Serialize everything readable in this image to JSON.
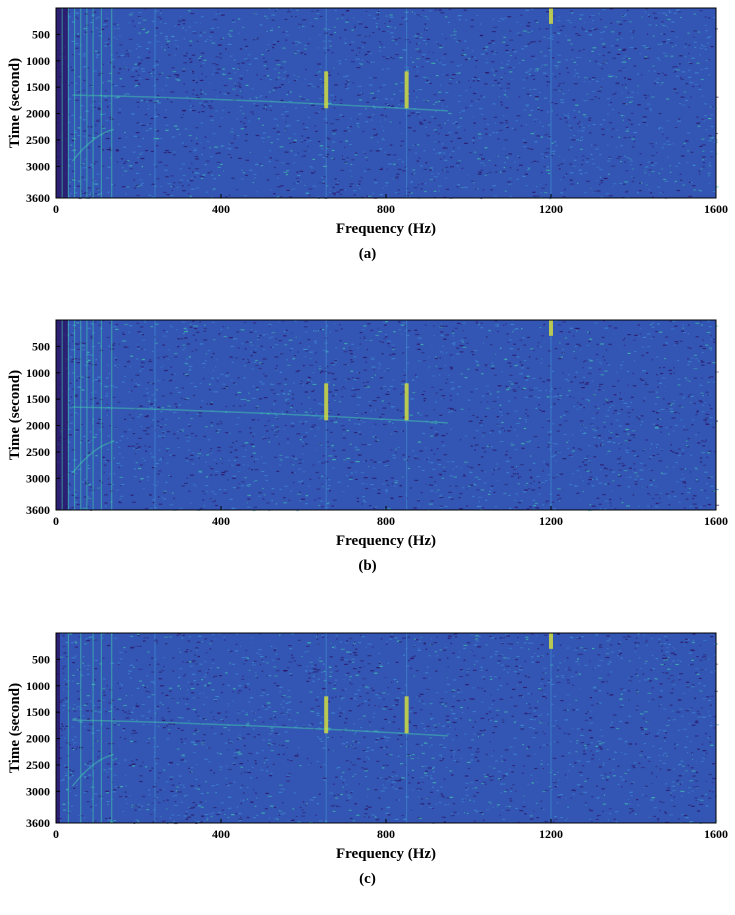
{
  "chart_data": [
    {
      "type": "heatmap",
      "panel": "(a)",
      "caption": "(a)",
      "xlabel": "Frequency (Hz)",
      "ylabel": "Time (second)",
      "xlim": [
        0,
        1600
      ],
      "ylim": [
        0,
        3600
      ],
      "y_inverted": true,
      "xticks": [
        0,
        400,
        800,
        1200,
        1600
      ],
      "yticks": [
        500,
        1000,
        1500,
        2000,
        2500,
        3000,
        3600
      ],
      "colormap": [
        "#2a0f5e",
        "#3355b3",
        "#3f8fd2",
        "#42c9b0",
        "#d8e23a"
      ],
      "tonal_lines_hz": [
        15,
        30,
        45,
        60,
        75,
        90,
        110,
        135,
        240,
        655,
        850,
        1200
      ],
      "hotspots": [
        {
          "freq_hz": 655,
          "time_s": [
            1200,
            1900
          ]
        },
        {
          "freq_hz": 850,
          "time_s": [
            1200,
            1900
          ]
        },
        {
          "freq_hz": 1200,
          "time_s": [
            0,
            300
          ]
        }
      ]
    },
    {
      "type": "heatmap",
      "panel": "(b)",
      "caption": "(b)",
      "xlabel": "Frequency (Hz)",
      "ylabel": "Time (second)",
      "xlim": [
        0,
        1600
      ],
      "ylim": [
        0,
        3600
      ],
      "y_inverted": true,
      "xticks": [
        0,
        400,
        800,
        1200,
        1600
      ],
      "yticks": [
        500,
        1000,
        1500,
        2000,
        2500,
        3000,
        3600
      ],
      "colormap": [
        "#2a0f5e",
        "#3355b3",
        "#3f8fd2",
        "#42c9b0",
        "#d8e23a"
      ],
      "tonal_lines_hz": [
        15,
        30,
        45,
        60,
        75,
        90,
        110,
        135,
        240,
        655,
        850,
        1200
      ],
      "hotspots": [
        {
          "freq_hz": 655,
          "time_s": [
            1200,
            1900
          ]
        },
        {
          "freq_hz": 850,
          "time_s": [
            1200,
            1900
          ]
        },
        {
          "freq_hz": 1200,
          "time_s": [
            0,
            300
          ]
        }
      ]
    },
    {
      "type": "heatmap",
      "panel": "(c)",
      "caption": "(c)",
      "xlabel": "Frequency (Hz)",
      "ylabel": "Time (second)",
      "xlim": [
        0,
        1600
      ],
      "ylim": [
        0,
        3600
      ],
      "y_inverted": true,
      "xticks": [
        0,
        400,
        800,
        1200,
        1600
      ],
      "yticks": [
        500,
        1000,
        1500,
        2000,
        2500,
        3000,
        3600
      ],
      "colormap": [
        "#2a0f5e",
        "#3355b3",
        "#3f8fd2",
        "#42c9b0",
        "#d8e23a"
      ],
      "tonal_lines_hz": [
        30,
        60,
        90,
        110,
        135,
        240,
        655,
        850,
        1200
      ],
      "hotspots": [
        {
          "freq_hz": 655,
          "time_s": [
            1200,
            1900
          ]
        },
        {
          "freq_hz": 850,
          "time_s": [
            1200,
            1900
          ]
        },
        {
          "freq_hz": 1200,
          "time_s": [
            0,
            300
          ]
        }
      ]
    }
  ]
}
